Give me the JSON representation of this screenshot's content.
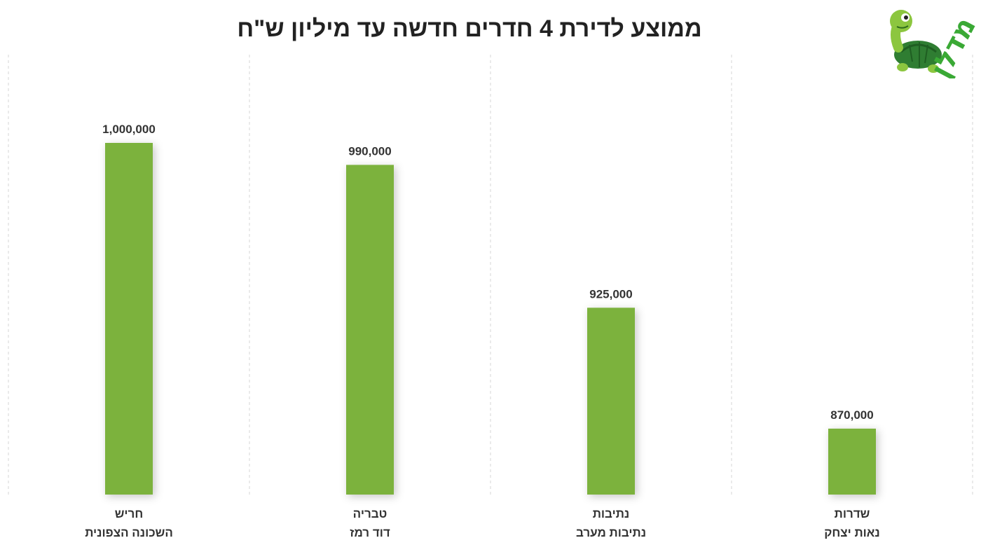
{
  "chart_data": {
    "type": "bar",
    "title": "ממוצע לדירת 4 חדרים חדשה עד מיליון ש\"ח",
    "categories": [
      {
        "line1": "חריש",
        "line2": "השכונה הצפונית"
      },
      {
        "line1": "טבריה",
        "line2": "דוד רמז"
      },
      {
        "line1": "נתיבות",
        "line2": "נתיבות מערב"
      },
      {
        "line1": "שדרות",
        "line2": "נאות יצחק"
      }
    ],
    "values": [
      1000000,
      990000,
      925000,
      870000
    ],
    "value_labels": [
      "1,000,000",
      "990,000",
      "925,000",
      "870,000"
    ],
    "ylim": [
      840000,
      1000000
    ],
    "bar_color": "#7cb23c",
    "grid": "vertical-dashed-separators",
    "legend": "none"
  },
  "logo": {
    "text": "מדלן",
    "color": "#3aa935",
    "icon": "turtle-icon"
  }
}
